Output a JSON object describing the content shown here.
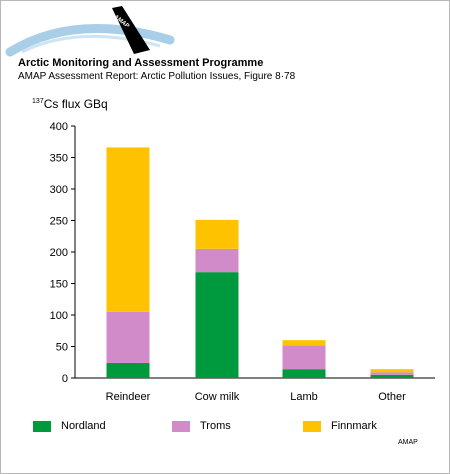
{
  "header": {
    "logo_text": "AMAP",
    "title": "Arctic Monitoring and Assessment Programme",
    "subtitle": "AMAP Assessment Report: Arctic Pollution Issues, Figure 8·78"
  },
  "footer": {
    "credit": "AMAP"
  },
  "colors": {
    "Nordland": "#009a3e",
    "Troms": "#d08bc8",
    "Finnmark": "#fec200",
    "axis": "#000000",
    "logo_arc": "#a9cfe8"
  },
  "chart_data": {
    "type": "bar",
    "stacked": true,
    "ylabel_superscript": "137",
    "ylabel": "Cs flux GBq",
    "xlabel": "",
    "categories": [
      "Reindeer",
      "Cow milk",
      "Lamb",
      "Other"
    ],
    "ylim": [
      0,
      400
    ],
    "yticks": [
      0,
      50,
      100,
      150,
      200,
      250,
      300,
      350,
      400
    ],
    "series": [
      {
        "name": "Nordland",
        "values": [
          24,
          168,
          14,
          5
        ]
      },
      {
        "name": "Troms",
        "values": [
          81,
          37,
          38,
          4
        ]
      },
      {
        "name": "Finnmark",
        "values": [
          261,
          46,
          8,
          5
        ]
      }
    ],
    "legend_position": "bottom",
    "grid": false
  }
}
